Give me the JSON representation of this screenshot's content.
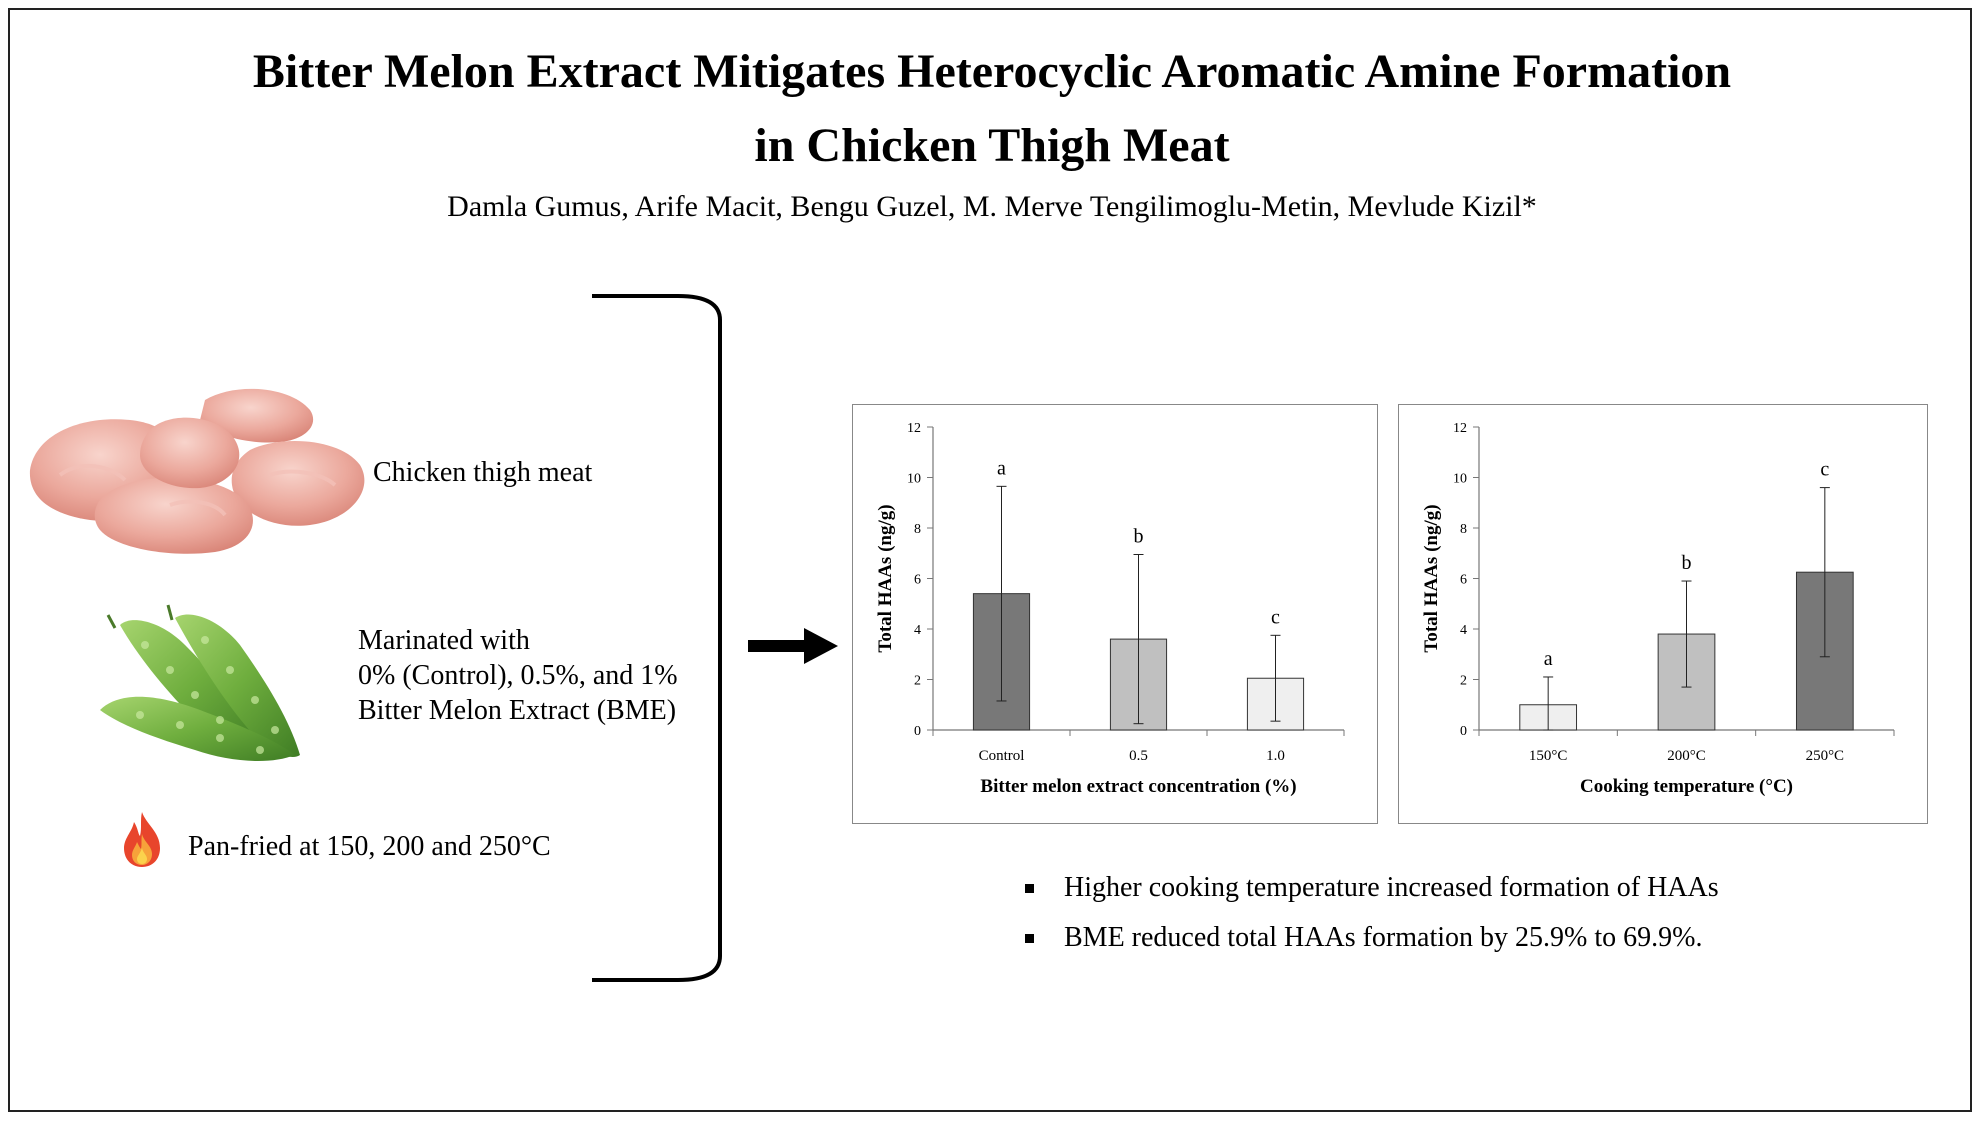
{
  "title": {
    "line1": "Bitter Melon Extract Mitigates Heterocyclic Aromatic Amine Formation",
    "line2": "in Chicken Thigh Meat"
  },
  "authors": "Damla Gumus, Arife Macit, Bengu Guzel, M. Merve Tengilimoglu-Metin, Mevlude Kizil*",
  "method": {
    "meat_label": "Chicken thigh meat",
    "marinade_lines": [
      "Marinated with",
      "0% (Control), 0.5%, and 1%",
      "Bitter Melon Extract (BME)"
    ],
    "cooking_label": "Pan-fried at 150, 200 and 250°C",
    "icons": [
      "chicken-thigh-image",
      "bitter-melon-image",
      "flame-icon",
      "bracket",
      "arrow-right-icon"
    ]
  },
  "findings": [
    "Higher cooking temperature increased formation of HAAs",
    "BME reduced total HAAs formation by 25.9% to 69.9%."
  ],
  "chart_data": [
    {
      "type": "bar",
      "xlabel": "Bitter melon extract concentration (%)",
      "ylabel": "Total HAAs (ng/g)",
      "ylim": [
        0,
        12
      ],
      "yticks": [
        0,
        2,
        4,
        6,
        8,
        10,
        12
      ],
      "grid": false,
      "categories": [
        "Control",
        "0.5",
        "1.0"
      ],
      "values": [
        5.4,
        3.6,
        2.05
      ],
      "errors": [
        4.25,
        3.35,
        1.7
      ],
      "letters": [
        "a",
        "b",
        "c"
      ],
      "colors": [
        "#787878",
        "#c0c0c0",
        "#efefef"
      ]
    },
    {
      "type": "bar",
      "xlabel": "Cooking temperature (°C)",
      "ylabel": "Total HAAs (ng/g)",
      "ylim": [
        0,
        12
      ],
      "yticks": [
        0,
        2,
        4,
        6,
        8,
        10,
        12
      ],
      "grid": false,
      "categories": [
        "150°C",
        "200°C",
        "250°C"
      ],
      "values": [
        1.0,
        3.8,
        6.25
      ],
      "errors": [
        1.1,
        2.1,
        3.35
      ],
      "letters": [
        "a",
        "b",
        "c"
      ],
      "colors": [
        "#efefef",
        "#c0c0c0",
        "#787878"
      ]
    }
  ]
}
